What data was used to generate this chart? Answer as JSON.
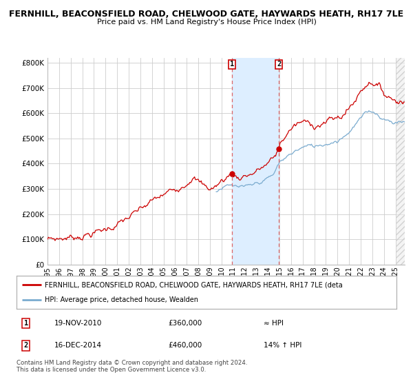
{
  "title_line1": "FERNHILL, BEACONSFIELD ROAD, CHELWOOD GATE, HAYWARDS HEATH, RH17 7LE",
  "title_line2": "Price paid vs. HM Land Registry's House Price Index (HPI)",
  "ylabel_ticks": [
    "£0",
    "£100K",
    "£200K",
    "£300K",
    "£400K",
    "£500K",
    "£600K",
    "£700K",
    "£800K"
  ],
  "ytick_values": [
    0,
    100000,
    200000,
    300000,
    400000,
    500000,
    600000,
    700000,
    800000
  ],
  "ylim": [
    0,
    820000
  ],
  "xlim_start": 1995.0,
  "xlim_end": 2025.8,
  "xtick_years": [
    1995,
    1996,
    1997,
    1998,
    1999,
    2000,
    2001,
    2002,
    2003,
    2004,
    2005,
    2006,
    2007,
    2008,
    2009,
    2010,
    2011,
    2012,
    2013,
    2014,
    2015,
    2016,
    2017,
    2018,
    2019,
    2020,
    2021,
    2022,
    2023,
    2024,
    2025
  ],
  "red_line_color": "#cc0000",
  "blue_line_color": "#7aabcf",
  "shade_color": "#ddeeff",
  "dashed_line_color": "#dd6666",
  "marker_color": "#cc0000",
  "grid_color": "#cccccc",
  "background_color": "#ffffff",
  "sale1_x": 2010.89,
  "sale1_y": 360000,
  "sale1_label": "1",
  "sale2_x": 2014.96,
  "sale2_y": 460000,
  "sale2_label": "2",
  "legend_red_label": "FERNHILL, BEACONSFIELD ROAD, CHELWOOD GATE, HAYWARDS HEATH, RH17 7LE (deta",
  "legend_blue_label": "HPI: Average price, detached house, Wealden",
  "table_row1": [
    "1",
    "19-NOV-2010",
    "£360,000",
    "≈ HPI"
  ],
  "table_row2": [
    "2",
    "16-DEC-2014",
    "£460,000",
    "14% ↑ HPI"
  ],
  "footer": "Contains HM Land Registry data © Crown copyright and database right 2024.\nThis data is licensed under the Open Government Licence v3.0."
}
